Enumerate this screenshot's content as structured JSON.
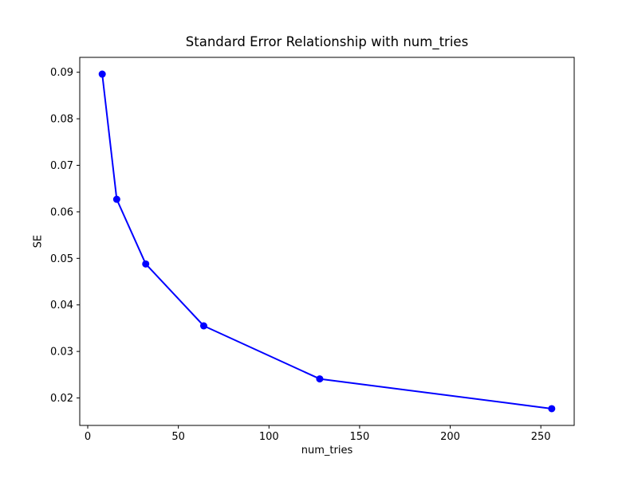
{
  "chart_data": {
    "type": "line",
    "title": "Standard Error Relationship with num_tries",
    "xlabel": "num_tries",
    "ylabel": "SE",
    "series": [
      {
        "name": "SE",
        "x": [
          8,
          16,
          32,
          64,
          128,
          256
        ],
        "y": [
          0.0896,
          0.0627,
          0.0488,
          0.0355,
          0.0241,
          0.0177
        ],
        "line_color": "#0000ff",
        "marker": "circle",
        "marker_diameter": 9,
        "line_width": 2
      }
    ],
    "xlim": [
      -4.4,
      268.4
    ],
    "ylim": [
      0.0141,
      0.0932
    ],
    "xticks": [
      0,
      50,
      100,
      150,
      200,
      250
    ],
    "yticks": [
      0.02,
      0.03,
      0.04,
      0.05,
      0.06,
      0.07,
      0.08,
      0.09
    ],
    "ytick_decimals": 2,
    "grid": false,
    "legend": "none",
    "background": "#ffffff",
    "spine_color": "#000000",
    "tick_label_color": "#000000"
  }
}
